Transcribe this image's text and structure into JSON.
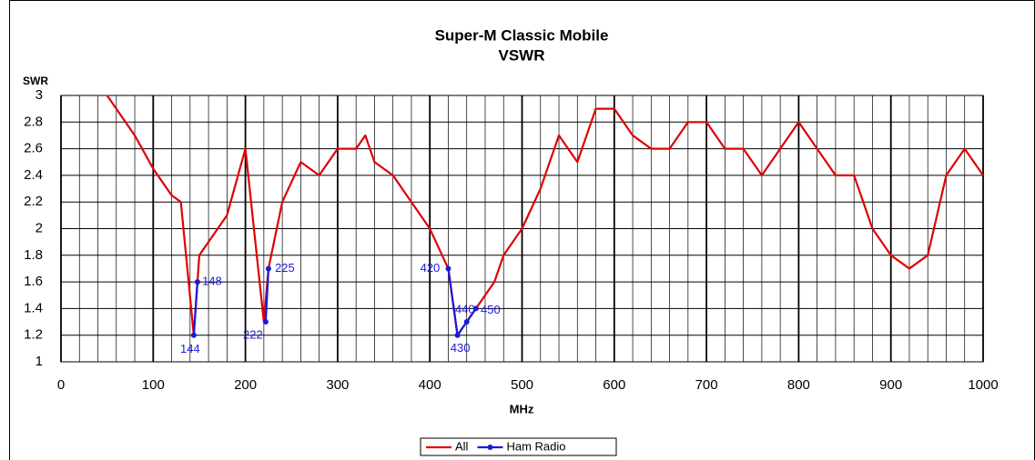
{
  "chart_data": {
    "type": "line",
    "title": "Super-M Classic Mobile",
    "subtitle": "VSWR",
    "y_label": "SWR",
    "x_label": "MHz",
    "xlim": [
      0,
      1000
    ],
    "xticks": [
      0,
      100,
      200,
      300,
      400,
      500,
      600,
      700,
      800,
      900,
      1000
    ],
    "xminorticks": [
      20,
      40,
      60,
      80,
      120,
      140,
      160,
      180,
      220,
      240,
      260,
      280,
      320,
      340,
      360,
      380,
      420,
      440,
      460,
      480,
      520,
      540,
      560,
      580,
      620,
      640,
      660,
      680,
      720,
      740,
      760,
      780,
      820,
      840,
      860,
      880,
      920,
      940,
      960,
      980
    ],
    "ylim": [
      1,
      3
    ],
    "yticks": [
      3,
      2.8,
      2.6,
      2.4,
      2.2,
      2,
      1.8,
      1.6,
      1.4,
      1.2,
      1
    ],
    "grid": true,
    "legend": "bottom",
    "series": [
      {
        "name": "All",
        "color": "#e00000",
        "markers": false,
        "x": [
          50,
          80,
          100,
          120,
          130,
          144,
          150,
          160,
          180,
          200,
          220,
          225,
          240,
          260,
          280,
          300,
          320,
          330,
          340,
          360,
          380,
          400,
          420,
          430,
          440,
          450,
          460,
          470,
          480,
          500,
          520,
          540,
          560,
          580,
          600,
          620,
          640,
          660,
          680,
          700,
          720,
          740,
          760,
          780,
          800,
          820,
          840,
          860,
          880,
          900,
          920,
          940,
          960,
          980,
          1000
        ],
        "values": [
          3.0,
          2.7,
          2.45,
          2.25,
          2.2,
          1.2,
          1.8,
          1.9,
          2.1,
          2.6,
          1.3,
          1.7,
          2.2,
          2.5,
          2.4,
          2.6,
          2.6,
          2.7,
          2.5,
          2.4,
          2.2,
          2.0,
          1.7,
          1.2,
          1.3,
          1.4,
          1.5,
          1.6,
          1.8,
          2.0,
          2.3,
          2.7,
          2.5,
          2.9,
          2.9,
          2.7,
          2.6,
          2.6,
          2.8,
          2.8,
          2.6,
          2.6,
          2.4,
          2.6,
          2.8,
          2.6,
          2.4,
          2.4,
          2.0,
          1.8,
          1.7,
          1.8,
          2.4,
          2.6,
          2.4
        ]
      },
      {
        "name": "Ham Radio",
        "color": "#1a1adc",
        "markers": true,
        "data_labels": true,
        "x": [
          144,
          148,
          null,
          222,
          225,
          null,
          420,
          430,
          440,
          450
        ],
        "values": [
          1.2,
          1.6,
          null,
          1.3,
          1.7,
          null,
          1.7,
          1.2,
          1.3,
          1.4
        ]
      }
    ]
  }
}
